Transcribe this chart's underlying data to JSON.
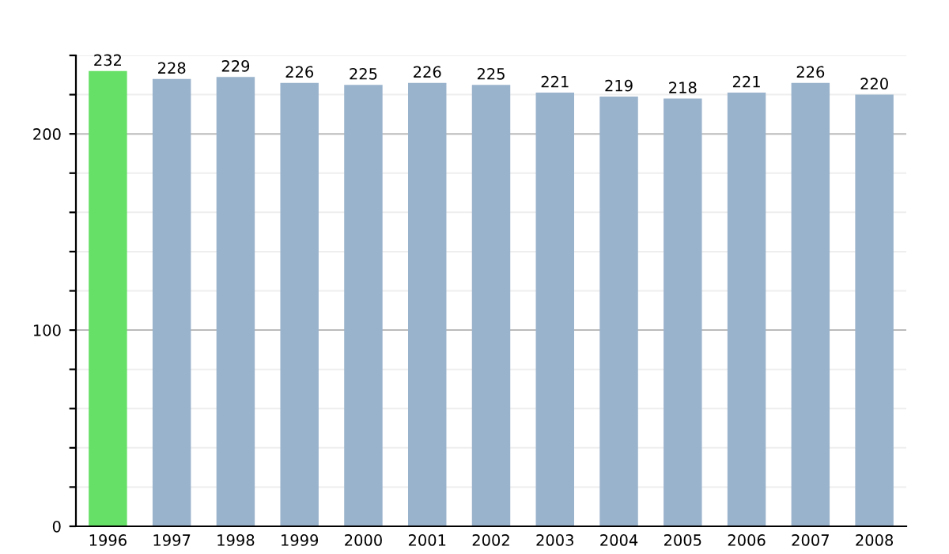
{
  "chart_data": {
    "type": "bar",
    "categories": [
      "1996",
      "1997",
      "1998",
      "1999",
      "2000",
      "2001",
      "2002",
      "2003",
      "2004",
      "2005",
      "2006",
      "2007",
      "2008"
    ],
    "values": [
      232,
      228,
      229,
      226,
      225,
      226,
      225,
      221,
      219,
      218,
      221,
      226,
      220
    ],
    "colors": [
      "#66e066",
      "#9ab3cc",
      "#9ab3cc",
      "#9ab3cc",
      "#9ab3cc",
      "#9ab3cc",
      "#9ab3cc",
      "#9ab3cc",
      "#9ab3cc",
      "#9ab3cc",
      "#9ab3cc",
      "#9ab3cc",
      "#9ab3cc"
    ],
    "ylim": [
      0,
      240
    ],
    "yticks": [
      0,
      {
        "value": 20,
        "label": null
      },
      {
        "value": 40,
        "label": null
      },
      {
        "value": 60,
        "label": null
      },
      {
        "value": 80,
        "label": null
      },
      100,
      {
        "value": 120,
        "label": null
      },
      {
        "value": 140,
        "label": null
      },
      {
        "value": 160,
        "label": null
      },
      {
        "value": 180,
        "label": null
      },
      200,
      {
        "value": 220,
        "label": null
      },
      {
        "value": 240,
        "label": null
      }
    ],
    "grid": "y",
    "data_labels": true
  }
}
